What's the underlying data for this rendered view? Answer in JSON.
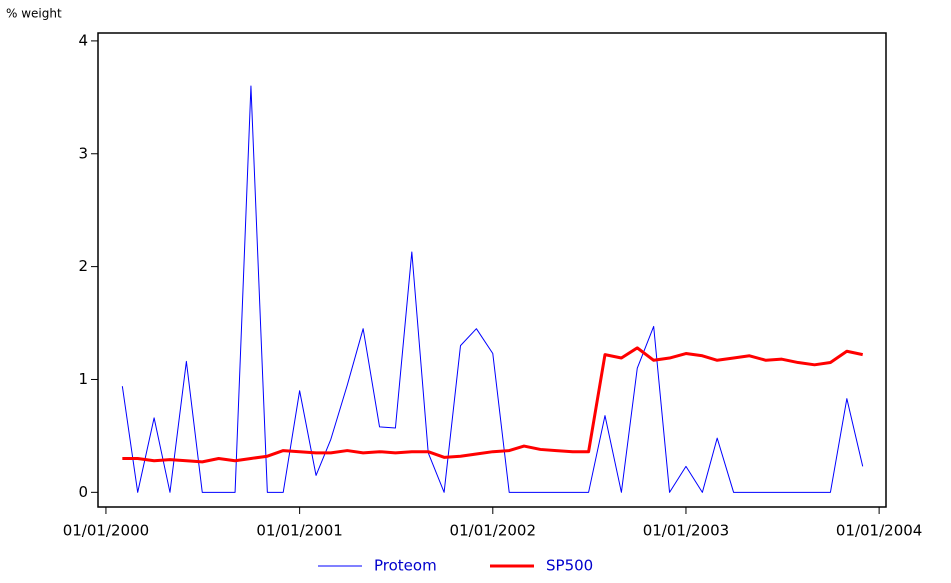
{
  "chart_data": {
    "type": "line",
    "y_label": "% weight",
    "x": [
      "2000-02-01",
      "2000-03-01",
      "2000-04-01",
      "2000-05-01",
      "2000-06-01",
      "2000-07-01",
      "2000-08-01",
      "2000-09-01",
      "2000-10-01",
      "2000-11-01",
      "2000-12-01",
      "2001-01-01",
      "2001-02-01",
      "2001-03-01",
      "2001-04-01",
      "2001-05-01",
      "2001-06-01",
      "2001-07-01",
      "2001-08-01",
      "2001-09-01",
      "2001-10-01",
      "2001-11-01",
      "2001-12-01",
      "2002-01-01",
      "2002-02-01",
      "2002-03-01",
      "2002-04-01",
      "2002-05-01",
      "2002-06-01",
      "2002-07-01",
      "2002-08-01",
      "2002-09-01",
      "2002-10-01",
      "2002-11-01",
      "2002-12-01",
      "2003-01-01",
      "2003-02-01",
      "2003-03-01",
      "2003-04-01",
      "2003-05-01",
      "2003-06-01",
      "2003-07-01",
      "2003-08-01",
      "2003-09-01",
      "2003-10-01",
      "2003-11-01",
      "2003-12-01"
    ],
    "series": [
      {
        "name": "Proteom",
        "color": "#0000ff",
        "width": 1,
        "values": [
          0.94,
          0,
          0.66,
          0,
          1.16,
          0,
          0,
          0,
          3.6,
          0,
          0,
          0.9,
          0.15,
          0.47,
          0.95,
          1.45,
          0.58,
          0.57,
          2.13,
          0.35,
          0,
          1.3,
          1.45,
          1.23,
          0,
          0,
          0,
          0,
          0,
          0,
          0.68,
          0,
          1.1,
          1.47,
          0,
          0.23,
          0,
          0.48,
          0,
          0,
          0,
          0,
          0,
          0,
          0,
          0.83,
          0.23
        ]
      },
      {
        "name": "SP500",
        "color": "#ff0000",
        "width": 3,
        "values": [
          0.3,
          0.3,
          0.28,
          0.29,
          0.28,
          0.27,
          0.3,
          0.28,
          0.3,
          0.32,
          0.37,
          0.36,
          0.35,
          0.35,
          0.37,
          0.35,
          0.36,
          0.35,
          0.36,
          0.36,
          0.31,
          0.32,
          0.34,
          0.36,
          0.37,
          0.41,
          0.38,
          0.37,
          0.36,
          0.36,
          1.22,
          1.19,
          1.28,
          1.17,
          1.19,
          1.23,
          1.21,
          1.17,
          1.19,
          1.21,
          1.17,
          1.18,
          1.15,
          1.13,
          1.15,
          1.25,
          1.22
        ]
      }
    ],
    "xlim": [
      "1999-12-17",
      "2004-01-14"
    ],
    "xticks": [
      {
        "value": "2000-01-01",
        "label": "01/01/2000"
      },
      {
        "value": "2001-01-01",
        "label": "01/01/2001"
      },
      {
        "value": "2002-01-01",
        "label": "01/01/2002"
      },
      {
        "value": "2003-01-01",
        "label": "01/01/2003"
      },
      {
        "value": "2004-01-01",
        "label": "01/01/2004"
      }
    ],
    "ylim": [
      -0.13,
      4.07
    ],
    "yticks": [
      0,
      1,
      2,
      3,
      4
    ],
    "legend": "bottom"
  }
}
